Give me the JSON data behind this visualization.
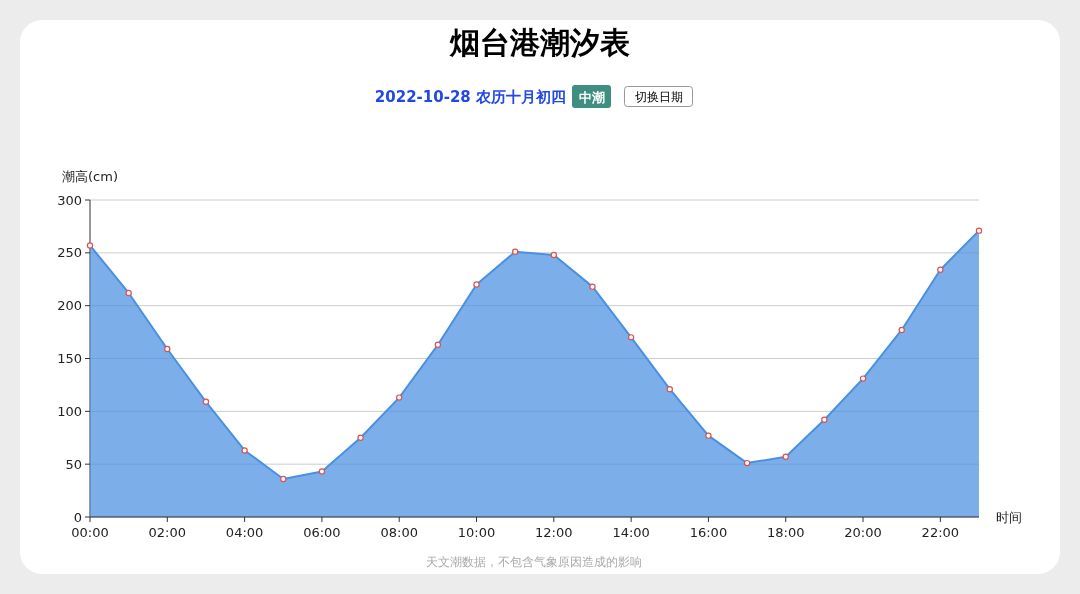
{
  "chart_data": {
    "type": "area",
    "title": "烟台港潮汐表",
    "subtitle": "2022-10-28 农历十月初四",
    "xlabel": "时间",
    "ylabel": "潮高(cm)",
    "categories": [
      "00:00",
      null,
      "02:00",
      null,
      "04:00",
      null,
      "06:00",
      null,
      "08:00",
      null,
      "10:00",
      null,
      "12:00",
      null,
      "14:00",
      null,
      "16:00",
      null,
      "18:00",
      null,
      "20:00",
      null,
      "22:00",
      null
    ],
    "series": [
      {
        "color": "#4a90e2",
        "values": [
          257,
          212,
          159,
          109,
          63,
          36,
          43,
          75,
          113,
          163,
          220,
          251,
          248,
          218,
          170,
          121,
          77,
          51,
          57,
          92,
          131,
          177,
          234,
          271
        ]
      }
    ],
    "ylim": [
      0,
      300
    ],
    "yticks": [
      0,
      50,
      100,
      150,
      200,
      250,
      300
    ],
    "grid": "y",
    "marker": "circle",
    "line_style": "solid",
    "annotations": [
      "中潮",
      "切换日期",
      "天文潮数据，不包含气象原因造成的影响"
    ]
  }
}
